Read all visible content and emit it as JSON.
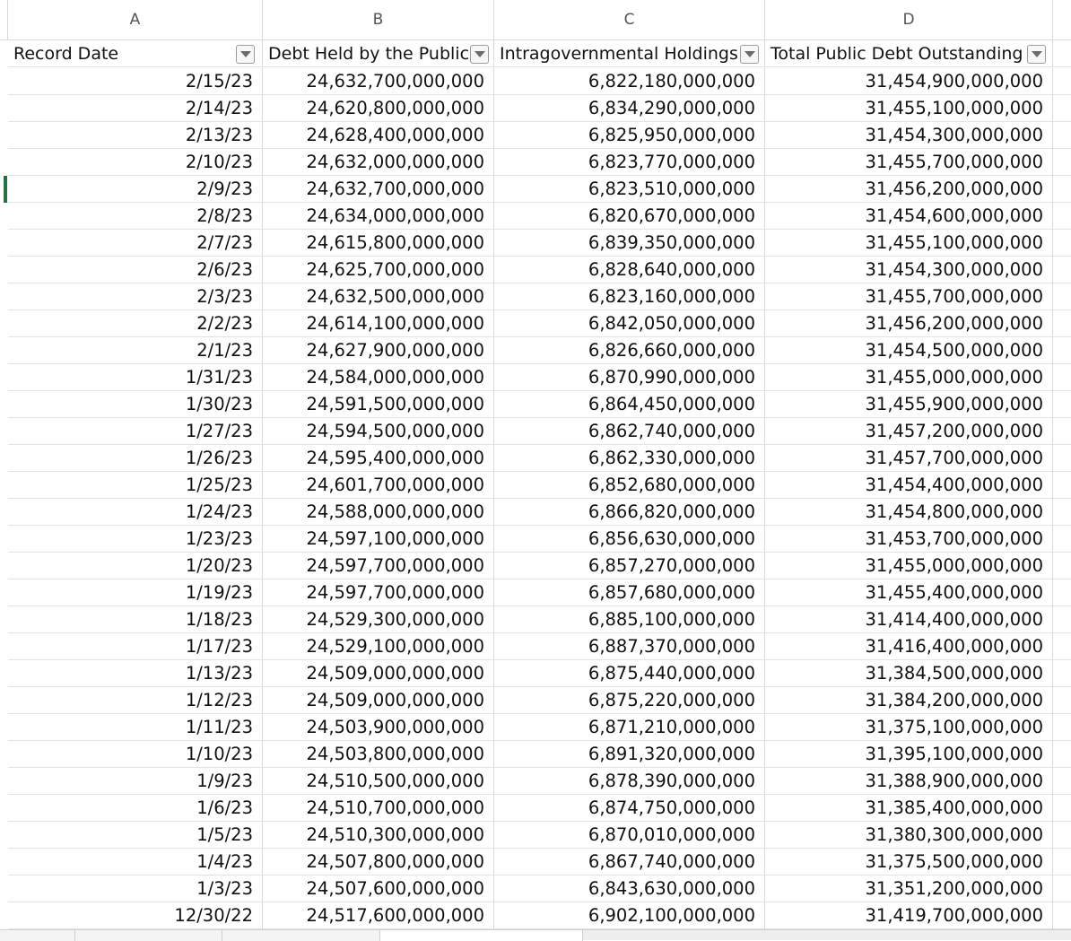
{
  "columns": [
    "A",
    "B",
    "C",
    "D"
  ],
  "headers": [
    "Record Date",
    "Debt Held by the Public",
    "Intragovernmental Holdings",
    "Total Public Debt Outstanding"
  ],
  "rows": [
    [
      "2/15/23",
      "24,632,700,000,000",
      "6,822,180,000,000",
      "31,454,900,000,000"
    ],
    [
      "2/14/23",
      "24,620,800,000,000",
      "6,834,290,000,000",
      "31,455,100,000,000"
    ],
    [
      "2/13/23",
      "24,628,400,000,000",
      "6,825,950,000,000",
      "31,454,300,000,000"
    ],
    [
      "2/10/23",
      "24,632,000,000,000",
      "6,823,770,000,000",
      "31,455,700,000,000"
    ],
    [
      "2/9/23",
      "24,632,700,000,000",
      "6,823,510,000,000",
      "31,456,200,000,000"
    ],
    [
      "2/8/23",
      "24,634,000,000,000",
      "6,820,670,000,000",
      "31,454,600,000,000"
    ],
    [
      "2/7/23",
      "24,615,800,000,000",
      "6,839,350,000,000",
      "31,455,100,000,000"
    ],
    [
      "2/6/23",
      "24,625,700,000,000",
      "6,828,640,000,000",
      "31,454,300,000,000"
    ],
    [
      "2/3/23",
      "24,632,500,000,000",
      "6,823,160,000,000",
      "31,455,700,000,000"
    ],
    [
      "2/2/23",
      "24,614,100,000,000",
      "6,842,050,000,000",
      "31,456,200,000,000"
    ],
    [
      "2/1/23",
      "24,627,900,000,000",
      "6,826,660,000,000",
      "31,454,500,000,000"
    ],
    [
      "1/31/23",
      "24,584,000,000,000",
      "6,870,990,000,000",
      "31,455,000,000,000"
    ],
    [
      "1/30/23",
      "24,591,500,000,000",
      "6,864,450,000,000",
      "31,455,900,000,000"
    ],
    [
      "1/27/23",
      "24,594,500,000,000",
      "6,862,740,000,000",
      "31,457,200,000,000"
    ],
    [
      "1/26/23",
      "24,595,400,000,000",
      "6,862,330,000,000",
      "31,457,700,000,000"
    ],
    [
      "1/25/23",
      "24,601,700,000,000",
      "6,852,680,000,000",
      "31,454,400,000,000"
    ],
    [
      "1/24/23",
      "24,588,000,000,000",
      "6,866,820,000,000",
      "31,454,800,000,000"
    ],
    [
      "1/23/23",
      "24,597,100,000,000",
      "6,856,630,000,000",
      "31,453,700,000,000"
    ],
    [
      "1/20/23",
      "24,597,700,000,000",
      "6,857,270,000,000",
      "31,455,000,000,000"
    ],
    [
      "1/19/23",
      "24,597,700,000,000",
      "6,857,680,000,000",
      "31,455,400,000,000"
    ],
    [
      "1/18/23",
      "24,529,300,000,000",
      "6,885,100,000,000",
      "31,414,400,000,000"
    ],
    [
      "1/17/23",
      "24,529,100,000,000",
      "6,887,370,000,000",
      "31,416,400,000,000"
    ],
    [
      "1/13/23",
      "24,509,000,000,000",
      "6,875,440,000,000",
      "31,384,500,000,000"
    ],
    [
      "1/12/23",
      "24,509,000,000,000",
      "6,875,220,000,000",
      "31,384,200,000,000"
    ],
    [
      "1/11/23",
      "24,503,900,000,000",
      "6,871,210,000,000",
      "31,375,100,000,000"
    ],
    [
      "1/10/23",
      "24,503,800,000,000",
      "6,891,320,000,000",
      "31,395,100,000,000"
    ],
    [
      "1/9/23",
      "24,510,500,000,000",
      "6,878,390,000,000",
      "31,388,900,000,000"
    ],
    [
      "1/6/23",
      "24,510,700,000,000",
      "6,874,750,000,000",
      "31,385,400,000,000"
    ],
    [
      "1/5/23",
      "24,510,300,000,000",
      "6,870,010,000,000",
      "31,380,300,000,000"
    ],
    [
      "1/4/23",
      "24,507,800,000,000",
      "6,867,740,000,000",
      "31,375,500,000,000"
    ],
    [
      "1/3/23",
      "24,507,600,000,000",
      "6,843,630,000,000",
      "31,351,200,000,000"
    ],
    [
      "12/30/22",
      "24,517,600,000,000",
      "6,902,100,000,000",
      "31,419,700,000,000"
    ]
  ],
  "colors": {
    "selection": "#217346",
    "gridline": "#d9d9d9"
  },
  "icons": {
    "filter": "filter-dropdown-icon"
  }
}
